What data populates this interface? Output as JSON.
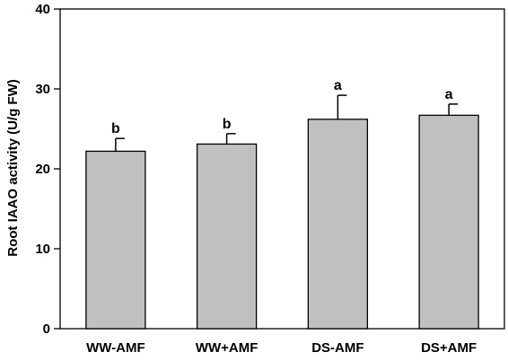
{
  "chart_data": {
    "type": "bar",
    "categories": [
      "WW-AMF",
      "WW+AMF",
      "DS-AMF",
      "DS+AMF"
    ],
    "values": [
      22.2,
      23.1,
      26.2,
      26.7
    ],
    "errors": [
      1.6,
      1.3,
      3.0,
      1.4
    ],
    "significance": [
      "b",
      "b",
      "a",
      "a"
    ],
    "title": "",
    "xlabel": "",
    "ylabel": "Root IAAO activity (U/g FW)",
    "ylim": [
      0,
      40
    ],
    "yticks": [
      "0",
      "10",
      "20",
      "30",
      "40"
    ],
    "grid": false,
    "bar_color": "#c0c0c0",
    "edge_color": "#000000"
  }
}
